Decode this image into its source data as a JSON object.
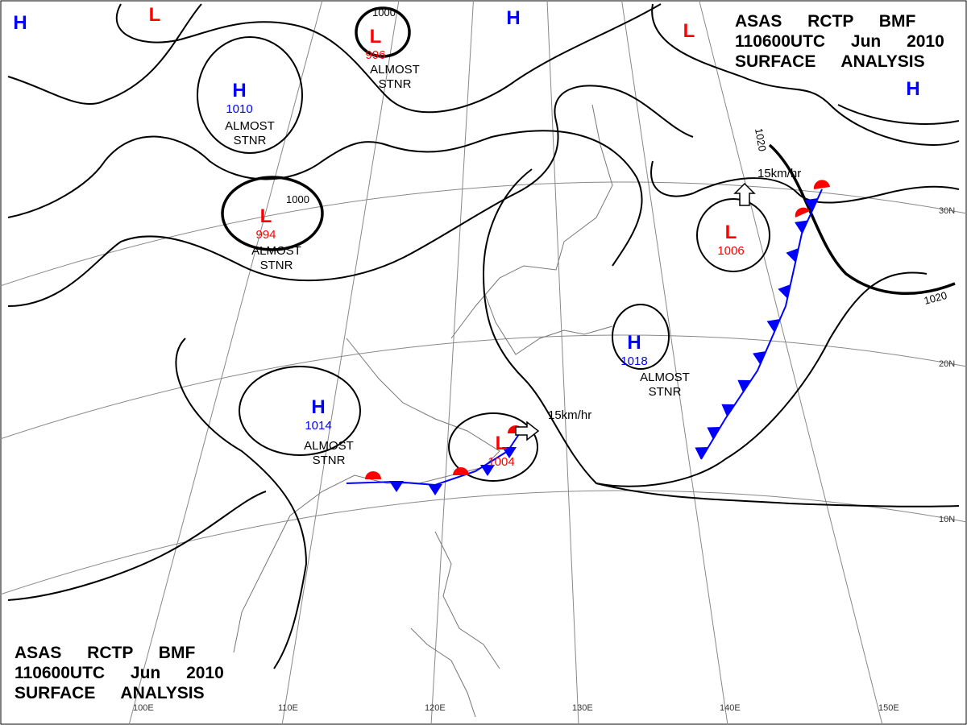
{
  "header": {
    "lines": [
      "ASAS RCTP BMF",
      "110600UTC Jun 2010",
      "SURFACE ANALYSIS"
    ]
  },
  "footer": {
    "lines": [
      "ASAS RCTP BMF",
      "110600UTC Jun 2010",
      "SURFACE ANALYSIS"
    ]
  },
  "colors": {
    "high": "#0000ff",
    "low": "#ff0000",
    "isobar": "#000000",
    "cold_front": "#0000ff",
    "warm_front": "#ff0000"
  },
  "pressure_centers": [
    {
      "symbol": "H"
    },
    {
      "symbol": "L"
    },
    {
      "symbol": "L",
      "value": 996
    },
    {
      "symbol": "H"
    },
    {
      "symbol": "L"
    },
    {
      "symbol": "H"
    },
    {
      "symbol": "H",
      "value": 1010
    },
    {
      "symbol": "L",
      "value": 994
    },
    {
      "symbol": "L",
      "value": 1006
    },
    {
      "symbol": "H",
      "value": 1018
    },
    {
      "symbol": "H",
      "value": 1014
    },
    {
      "symbol": "L",
      "value": 1004
    }
  ],
  "notes": [
    "ALMOST STNR",
    "ALMOST STNR",
    "ALMOST STNR",
    "ALMOST STNR",
    "ALMOST STNR"
  ],
  "isobar_labels": [
    1000,
    1000,
    1020,
    1020
  ],
  "motion_labels": [
    "15km/hr",
    "15km/hr"
  ],
  "latitude_labels": [
    "30N",
    "20N",
    "10N"
  ],
  "longitude_labels": [
    "100E",
    "110E",
    "120E",
    "130E",
    "140E",
    "150E"
  ]
}
